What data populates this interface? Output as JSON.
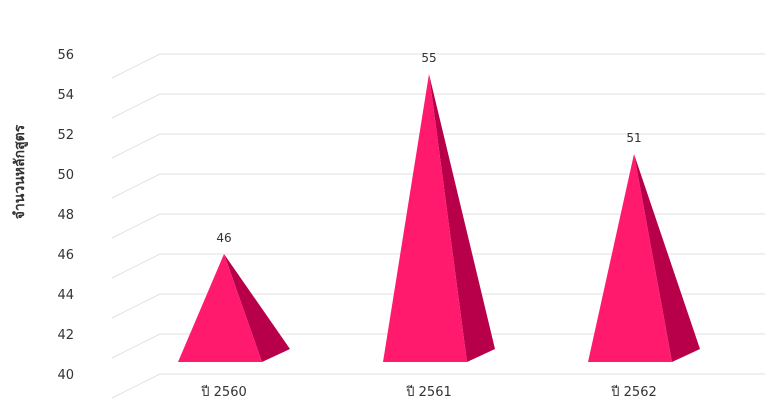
{
  "chart_data": {
    "type": "bar",
    "bar_shape": "pyramid-3d",
    "categories": [
      "ปี 2560",
      "ปี 2561",
      "ปี 2562"
    ],
    "values": [
      46,
      55,
      51
    ],
    "title": "",
    "xlabel": "",
    "ylabel": "จำนวนหลักสูตร",
    "ylim": [
      40,
      56
    ],
    "yticks": [
      40,
      42,
      44,
      46,
      48,
      50,
      52,
      54,
      56
    ],
    "grid": true,
    "legend": "none",
    "colors": {
      "bar": "#ff1a6e",
      "bar_side": "#b8004a",
      "grid": "#e2e2e2",
      "text": "#333333"
    }
  }
}
